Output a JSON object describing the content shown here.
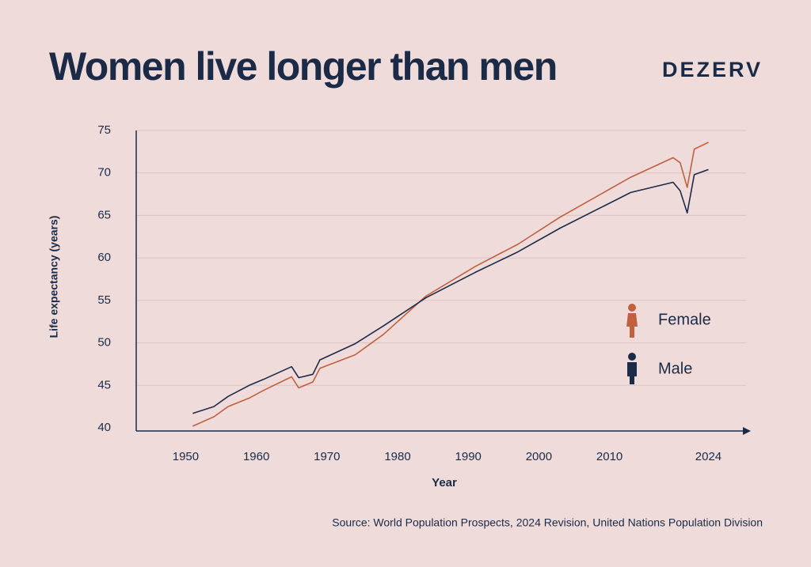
{
  "chart_data": {
    "type": "line",
    "title": "Women live longer than men",
    "brand": "DEZERV",
    "x_label": "Year",
    "y_label": "Life expectancy (years)",
    "source": "Source: World Population Prospects, 2024 Revision, United Nations Population Division",
    "x": [
      1951,
      1954,
      1956,
      1959,
      1961,
      1965,
      1966,
      1968,
      1969,
      1974,
      1978,
      1984,
      1991,
      1997,
      2003,
      2013,
      2019,
      2020,
      2021,
      2022,
      2024
    ],
    "series": [
      {
        "name": "Female",
        "color": "#c0603f",
        "values": [
          40.2,
          41.3,
          42.5,
          43.5,
          44.4,
          46.0,
          44.7,
          45.4,
          47.0,
          48.6,
          51.0,
          55.5,
          59.0,
          61.6,
          64.8,
          69.5,
          71.8,
          71.2,
          68.3,
          72.8,
          73.6
        ]
      },
      {
        "name": "Male",
        "color": "#1c2b4a",
        "values": [
          41.7,
          42.5,
          43.7,
          45.0,
          45.7,
          47.2,
          45.9,
          46.3,
          48.0,
          49.9,
          52.0,
          55.3,
          58.3,
          60.7,
          63.5,
          67.7,
          68.9,
          67.9,
          65.3,
          69.8,
          70.4
        ]
      }
    ],
    "xlim": [
      1943,
      2030
    ],
    "xticks": [
      1950,
      1960,
      1970,
      1980,
      1990,
      2000,
      2010,
      2024
    ],
    "ylim": [
      40,
      75
    ],
    "yticks": [
      40,
      45,
      50,
      55,
      60,
      65,
      70,
      75
    ],
    "grid": true
  }
}
